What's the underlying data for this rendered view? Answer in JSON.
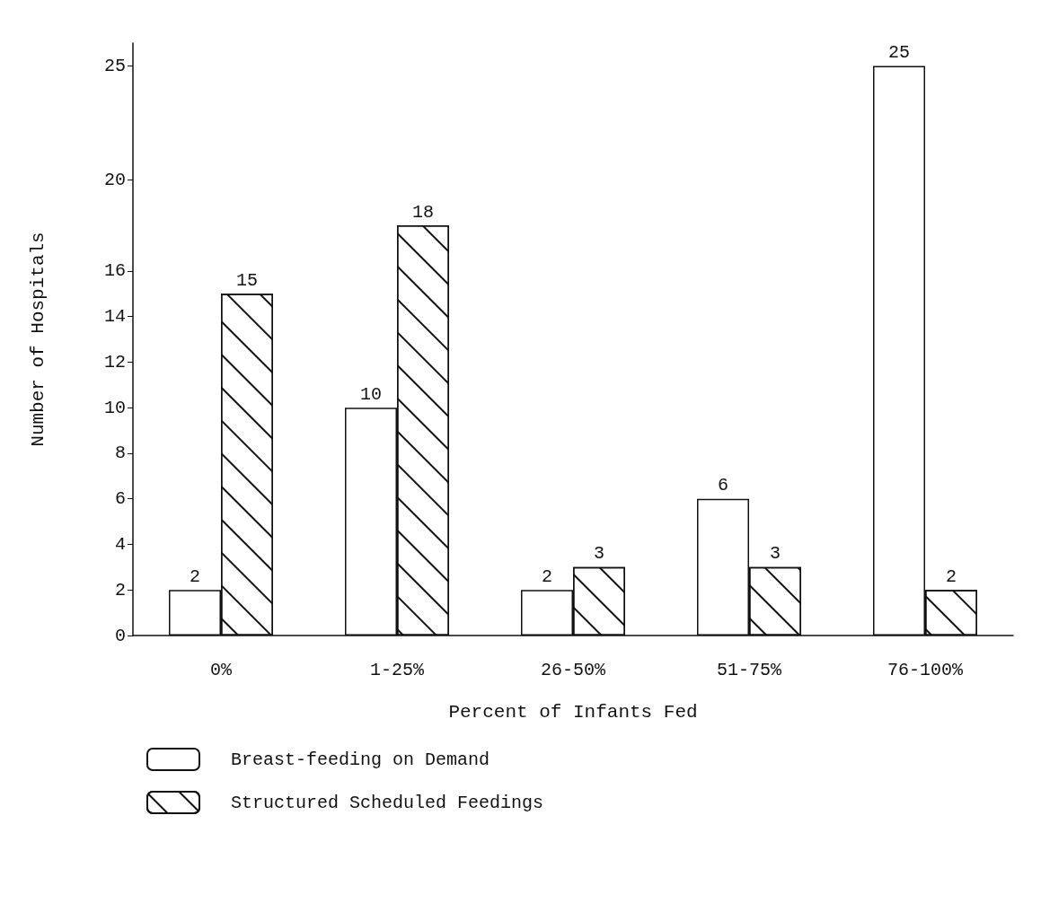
{
  "chart_data": {
    "type": "bar",
    "xlabel": "Percent of Infants Fed",
    "ylabel": "Number of Hospitals",
    "categories": [
      "0%",
      "1-25%",
      "26-50%",
      "51-75%",
      "76-100%"
    ],
    "series": [
      {
        "name": "Breast-feeding on Demand",
        "color": "#ffffff",
        "values": [
          2,
          10,
          2,
          6,
          25
        ]
      },
      {
        "name": "Structured Scheduled Feedings",
        "color": "#ffffff",
        "values": [
          15,
          18,
          3,
          3,
          2
        ]
      }
    ],
    "ylim": [
      0,
      26
    ],
    "yticks": [
      0,
      2,
      4,
      6,
      8,
      10,
      12,
      14,
      16,
      20,
      25
    ],
    "data_labels": true,
    "grid": false,
    "legend": "bottom left"
  }
}
